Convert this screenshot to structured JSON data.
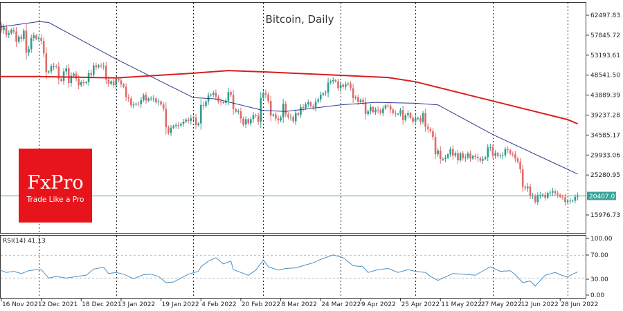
{
  "chart_data": [
    {
      "type": "candlestick",
      "title": "Bitcoin, Daily",
      "y_ticks": [
        "62497.83",
        "57845.72",
        "53193.61",
        "48541.50",
        "43889.39",
        "39237.28",
        "34585.17",
        "29933.06",
        "25280.95",
        "15976.73"
      ],
      "ylim": [
        14500,
        65500
      ],
      "x_ticks": [
        "16 Nov 2021",
        "2 Dec 2021",
        "18 Dec 2021",
        "3 Jan 2022",
        "19 Jan 2022",
        "4 Feb 2022",
        "20 Feb 2022",
        "8 Mar 2022",
        "24 Mar 2022",
        "9 Apr 2022",
        "25 Apr 2022",
        "11 May 2022",
        "27 May 2022",
        "12 Jun 2022",
        "28 Jun 2022"
      ],
      "x_tick_dates": [
        "2021-11-16",
        "2021-12-02",
        "2021-12-18",
        "2022-01-03",
        "2022-01-19",
        "2022-02-04",
        "2022-02-20",
        "2022-03-08",
        "2022-03-24",
        "2022-04-09",
        "2022-04-25",
        "2022-05-11",
        "2022-05-27",
        "2022-06-12",
        "2022-06-28"
      ],
      "month_separators": [
        "2021-12-01",
        "2022-01-01",
        "2022-02-01",
        "2022-03-01",
        "2022-04-01",
        "2022-05-01",
        "2022-06-01",
        "2022-07-01"
      ],
      "current_price": "20407.01",
      "current_price_value": 20407.01,
      "candles": {
        "first_date": "2021-11-15",
        "close": [
          60300,
          59000,
          59700,
          57900,
          58300,
          59100,
          58700,
          56300,
          57500,
          57000,
          58900,
          53800,
          54600,
          57200,
          57800,
          57000,
          57200,
          56500,
          53600,
          49200,
          49400,
          50600,
          50600,
          50500,
          47600,
          47200,
          49400,
          50100,
          46700,
          48400,
          48900,
          47700,
          46200,
          46900,
          46700,
          46900,
          49000,
          48600,
          50800,
          50400,
          50800,
          50700,
          50700,
          47500,
          46500,
          47100,
          46200,
          47700,
          47300,
          46400,
          45800,
          43400,
          43100,
          41500,
          41700,
          41900,
          41800,
          42700,
          43900,
          42600,
          43100,
          43100,
          43100,
          42200,
          42400,
          41700,
          40700,
          36400,
          35100,
          36300,
          36700,
          36900,
          36800,
          37200,
          37700,
          38200,
          37900,
          38500,
          38700,
          36900,
          37300,
          41600,
          41400,
          42400,
          43800,
          44000,
          44400,
          43500,
          42400,
          42200,
          42100,
          42600,
          44600,
          43900,
          40600,
          40000,
          40100,
          38400,
          37000,
          38300,
          37300,
          38300,
          39200,
          39100,
          37700,
          43200,
          44400,
          44000,
          42500,
          39100,
          39400,
          38400,
          38000,
          38700,
          41900,
          39400,
          38800,
          38800,
          37800,
          39700,
          39300,
          41100,
          40900,
          41800,
          42200,
          41300,
          41000,
          42400,
          42900,
          44000,
          44300,
          44500,
          46800,
          47100,
          47400,
          47100,
          45500,
          46300,
          45800,
          46400,
          46600,
          45500,
          43200,
          43400,
          42300,
          42800,
          42200,
          39500,
          40100,
          41100,
          39900,
          40500,
          40400,
          39700,
          40800,
          41500,
          41400,
          40500,
          39700,
          39500,
          39500,
          40400,
          38100,
          39200,
          39700,
          38600,
          37700,
          38500,
          38500,
          37700,
          39700,
          36500,
          36000,
          35500,
          34100,
          30100,
          31000,
          29000,
          29000,
          29300,
          30100,
          31300,
          29800,
          30400,
          28700,
          30300,
          29200,
          29400,
          30300,
          29100,
          29700,
          29500,
          29200,
          28600,
          29000,
          29400,
          31700,
          31800,
          29800,
          30400,
          29700,
          29800,
          29900,
          31300,
          31100,
          30200,
          30100,
          29100,
          28400,
          26600,
          22500,
          22200,
          22600,
          20400,
          20500,
          19000,
          20600,
          20600,
          20700,
          20000,
          21100,
          21200,
          21500,
          21000,
          20700,
          20200,
          20100,
          19000,
          19300,
          19300,
          19300,
          20200,
          20400
        ]
      },
      "series": [
        {
          "kind": "moving-average-fast",
          "color": "#2e3a8c",
          "points": [
            [
              "2021-11-15",
              59700
            ],
            [
              "2021-12-01",
              61000
            ],
            [
              "2021-12-05",
              60800
            ],
            [
              "2022-01-01",
              52300
            ],
            [
              "2022-02-01",
              43300
            ],
            [
              "2022-02-10",
              43000
            ],
            [
              "2022-03-01",
              40300
            ],
            [
              "2022-03-10",
              40100
            ],
            [
              "2022-04-01",
              41600
            ],
            [
              "2022-04-15",
              42200
            ],
            [
              "2022-05-01",
              42000
            ],
            [
              "2022-05-10",
              41600
            ],
            [
              "2022-06-01",
              34700
            ],
            [
              "2022-07-01",
              26600
            ],
            [
              "2022-07-05",
              25500
            ]
          ]
        },
        {
          "kind": "moving-average-slow",
          "color": "#d81e1e",
          "points": [
            [
              "2021-11-15",
              48200
            ],
            [
              "2021-12-01",
              48200
            ],
            [
              "2022-01-01",
              47900
            ],
            [
              "2022-02-01",
              49000
            ],
            [
              "2022-02-15",
              49600
            ],
            [
              "2022-03-01",
              49300
            ],
            [
              "2022-04-01",
              48500
            ],
            [
              "2022-04-20",
              48000
            ],
            [
              "2022-05-01",
              47000
            ],
            [
              "2022-06-01",
              42500
            ],
            [
              "2022-07-01",
              38200
            ],
            [
              "2022-07-05",
              37200
            ]
          ]
        }
      ],
      "colors": {
        "bull": "#2f9c8c",
        "bear": "#e06a6a",
        "price_line": "#3aa39a"
      }
    },
    {
      "type": "line",
      "label": "RSI(14) 41.13",
      "ylim": [
        0,
        100
      ],
      "y_ticks": [
        "100.00",
        "70.00",
        "30.00",
        "0.00"
      ],
      "levels": [
        70,
        30
      ],
      "color": "#4a8fc4",
      "points": [
        [
          "2021-11-15",
          45
        ],
        [
          "2021-11-18",
          40
        ],
        [
          "2021-11-21",
          42
        ],
        [
          "2021-11-24",
          38
        ],
        [
          "2021-11-27",
          43
        ],
        [
          "2021-11-30",
          45
        ],
        [
          "2021-12-02",
          45
        ],
        [
          "2021-12-05",
          30
        ],
        [
          "2021-12-08",
          33
        ],
        [
          "2021-12-12",
          30
        ],
        [
          "2021-12-15",
          32
        ],
        [
          "2021-12-18",
          34
        ],
        [
          "2021-12-20",
          35
        ],
        [
          "2021-12-23",
          46
        ],
        [
          "2021-12-27",
          49
        ],
        [
          "2021-12-29",
          38
        ],
        [
          "2022-01-01",
          40
        ],
        [
          "2022-01-04",
          37
        ],
        [
          "2022-01-08",
          29
        ],
        [
          "2022-01-12",
          36
        ],
        [
          "2022-01-15",
          37
        ],
        [
          "2022-01-18",
          33
        ],
        [
          "2022-01-21",
          22
        ],
        [
          "2022-01-24",
          23
        ],
        [
          "2022-01-27",
          30
        ],
        [
          "2022-01-30",
          37
        ],
        [
          "2022-02-03",
          42
        ],
        [
          "2022-02-04",
          50
        ],
        [
          "2022-02-07",
          60
        ],
        [
          "2022-02-10",
          66
        ],
        [
          "2022-02-13",
          55
        ],
        [
          "2022-02-16",
          60
        ],
        [
          "2022-02-17",
          45
        ],
        [
          "2022-02-20",
          40
        ],
        [
          "2022-02-23",
          35
        ],
        [
          "2022-02-26",
          44
        ],
        [
          "2022-03-01",
          62
        ],
        [
          "2022-03-03",
          50
        ],
        [
          "2022-03-07",
          44
        ],
        [
          "2022-03-10",
          47
        ],
        [
          "2022-03-14",
          48
        ],
        [
          "2022-03-17",
          52
        ],
        [
          "2022-03-21",
          57
        ],
        [
          "2022-03-24",
          63
        ],
        [
          "2022-03-29",
          71
        ],
        [
          "2022-04-02",
          66
        ],
        [
          "2022-04-06",
          52
        ],
        [
          "2022-04-10",
          50
        ],
        [
          "2022-04-12",
          40
        ],
        [
          "2022-04-16",
          45
        ],
        [
          "2022-04-20",
          47
        ],
        [
          "2022-04-24",
          40
        ],
        [
          "2022-04-28",
          45
        ],
        [
          "2022-05-01",
          42
        ],
        [
          "2022-05-05",
          40
        ],
        [
          "2022-05-07",
          33
        ],
        [
          "2022-05-10",
          26
        ],
        [
          "2022-05-12",
          30
        ],
        [
          "2022-05-16",
          38
        ],
        [
          "2022-05-20",
          37
        ],
        [
          "2022-05-25",
          35
        ],
        [
          "2022-05-31",
          50
        ],
        [
          "2022-06-04",
          42
        ],
        [
          "2022-06-08",
          43
        ],
        [
          "2022-06-10",
          36
        ],
        [
          "2022-06-13",
          22
        ],
        [
          "2022-06-16",
          25
        ],
        [
          "2022-06-18",
          16
        ],
        [
          "2022-06-22",
          35
        ],
        [
          "2022-06-26",
          40
        ],
        [
          "2022-06-28",
          36
        ],
        [
          "2022-07-01",
          32
        ],
        [
          "2022-07-03",
          37
        ],
        [
          "2022-07-05",
          41
        ]
      ]
    }
  ],
  "logo": {
    "brand": "FxPro",
    "tagline": "Trade Like a Pro",
    "color": "#e8141b"
  }
}
